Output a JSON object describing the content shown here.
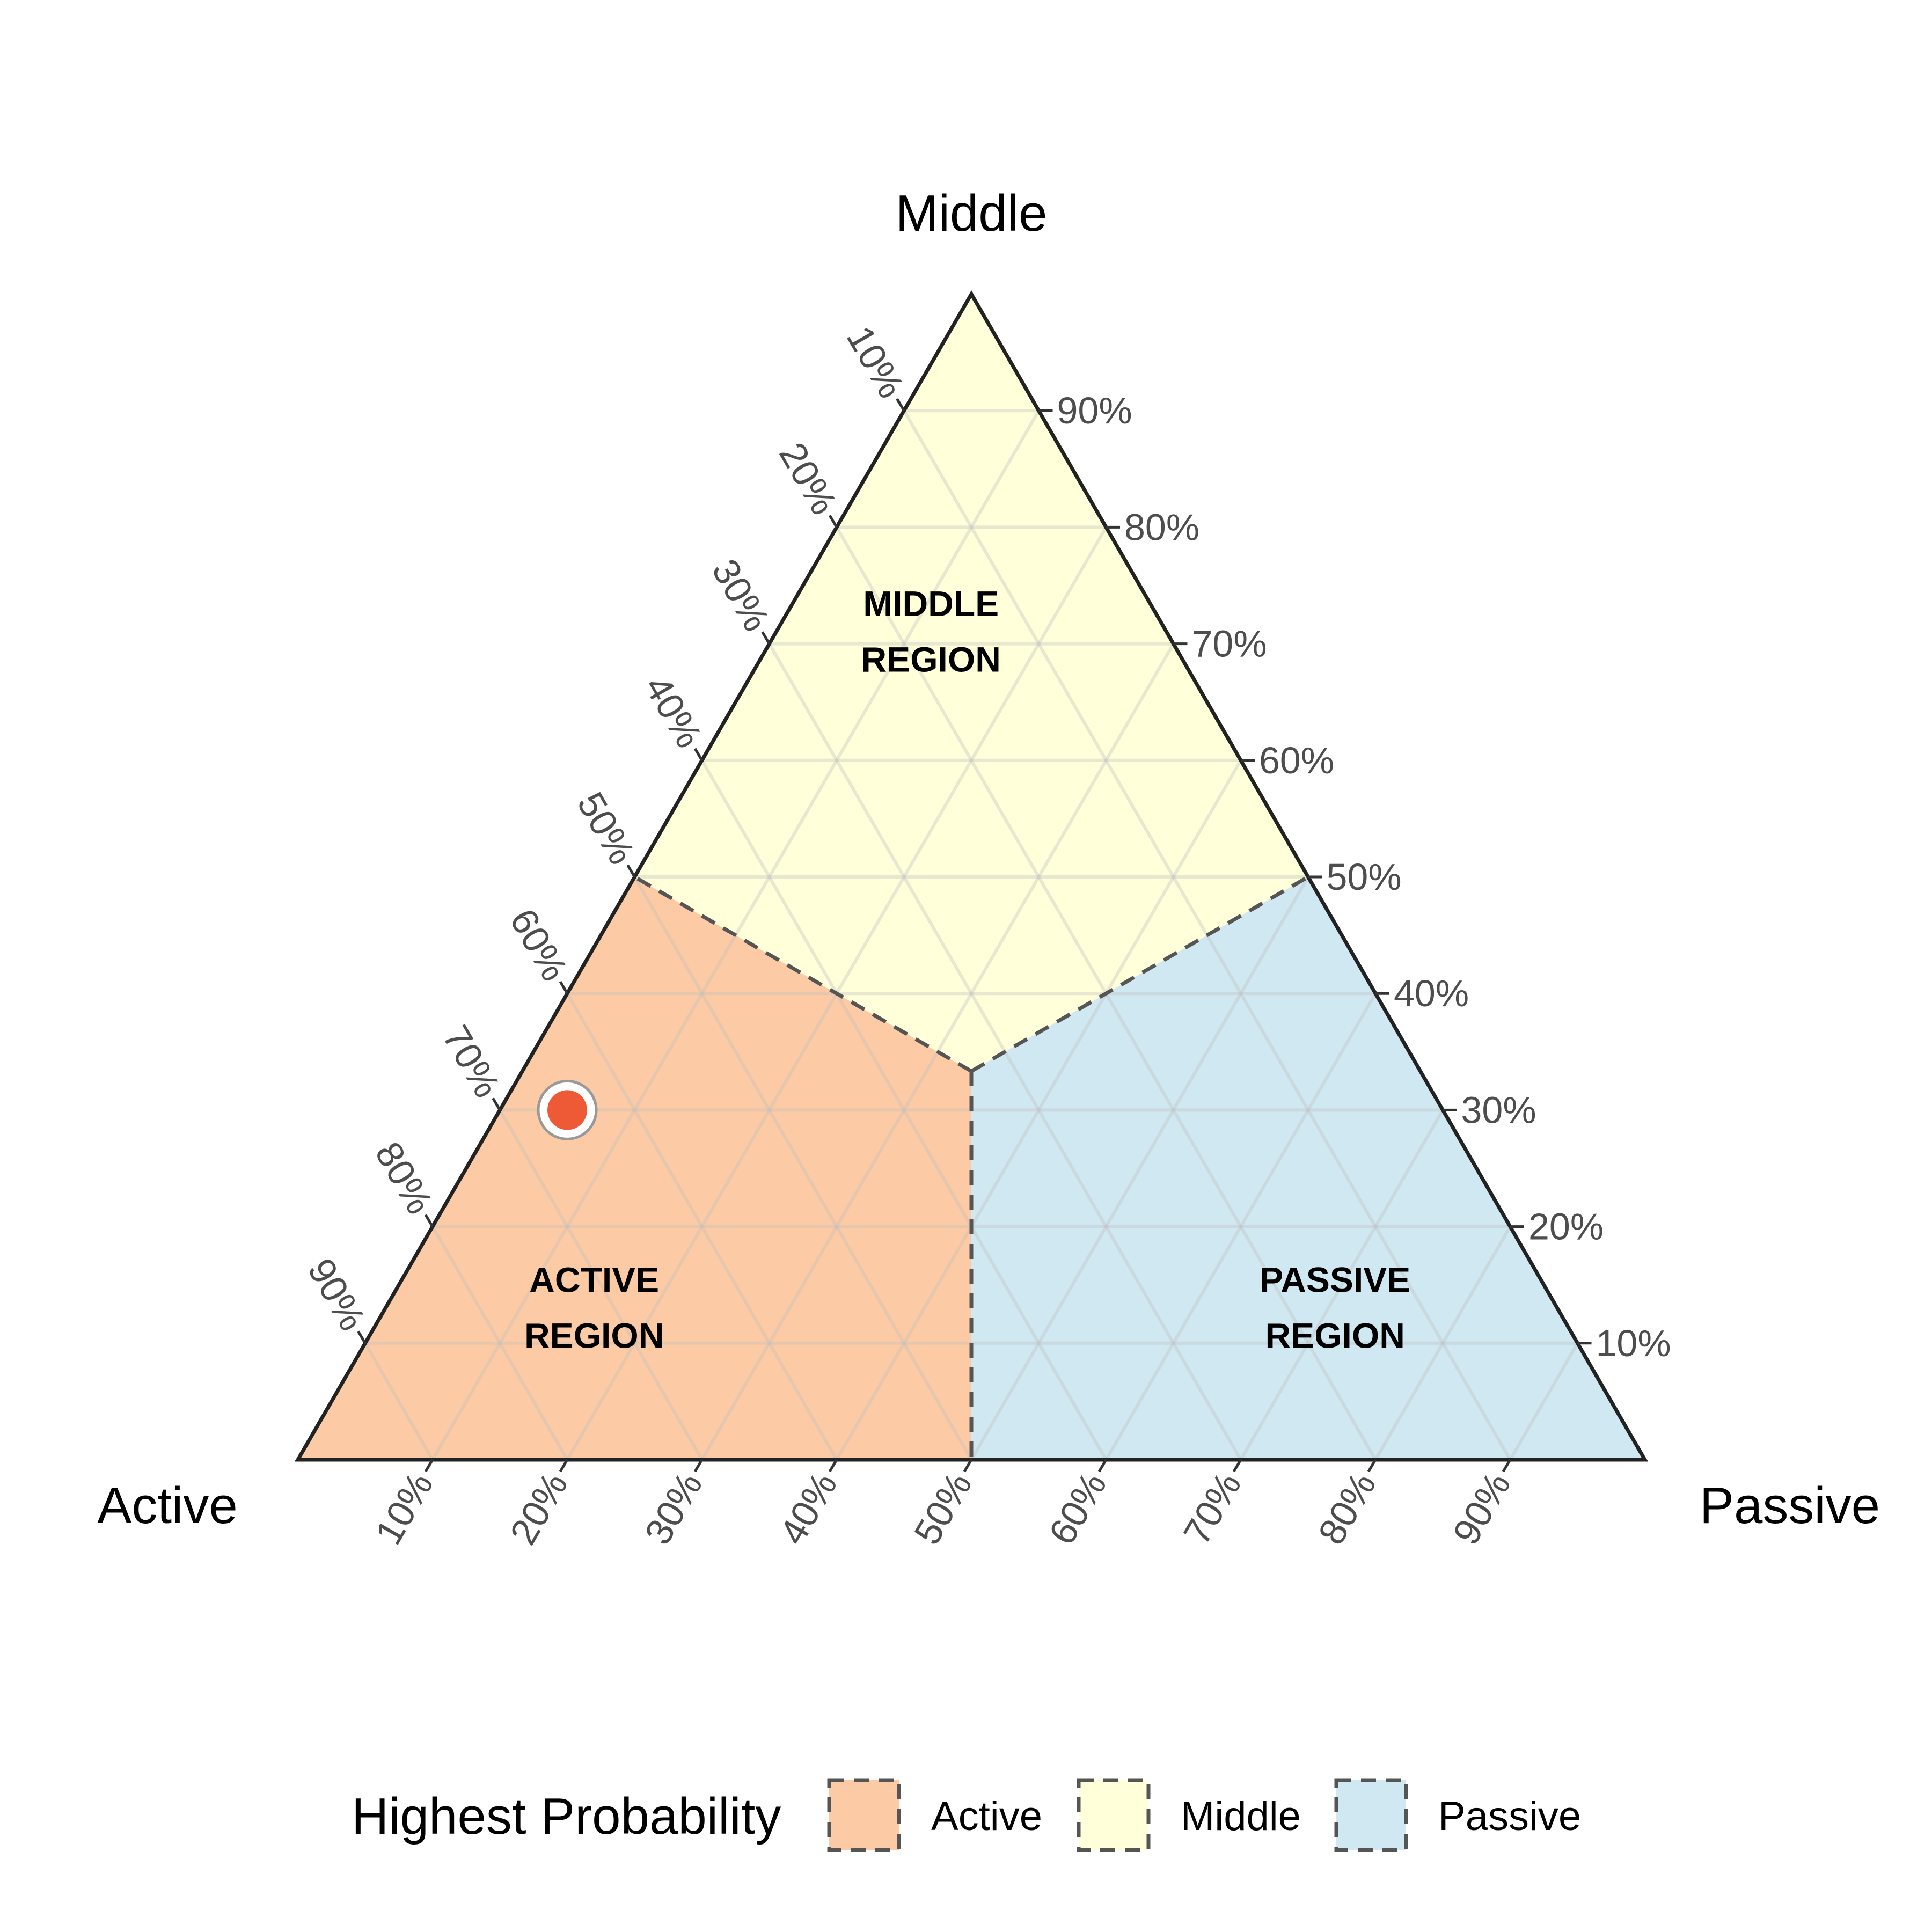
{
  "chart_data": {
    "type": "ternary",
    "axes": {
      "top": "Middle",
      "left": "Active",
      "right": "Passive"
    },
    "ticks": {
      "values": [
        10,
        20,
        30,
        40,
        50,
        60,
        70,
        80,
        90
      ],
      "labels": [
        "10%",
        "20%",
        "30%",
        "40%",
        "50%",
        "60%",
        "70%",
        "80%",
        "90%"
      ]
    },
    "grid": true,
    "regions": [
      {
        "name": "Active",
        "label_lines": [
          "ACTIVE",
          "REGION"
        ],
        "color": "#FCCBA5",
        "vertices": [
          {
            "active": 100,
            "middle": 0,
            "passive": 0
          },
          {
            "active": 50,
            "middle": 0,
            "passive": 50
          },
          {
            "active": 33.3,
            "middle": 33.3,
            "passive": 33.3
          },
          {
            "active": 50,
            "middle": 50,
            "passive": 0
          }
        ],
        "label_at": {
          "active": 72,
          "middle": 12,
          "passive": 16
        }
      },
      {
        "name": "Middle",
        "label_lines": [
          "MIDDLE",
          "REGION"
        ],
        "color": "#FFFFDA",
        "vertices": [
          {
            "active": 0,
            "middle": 100,
            "passive": 0
          },
          {
            "active": 50,
            "middle": 50,
            "passive": 0
          },
          {
            "active": 33.3,
            "middle": 33.3,
            "passive": 33.3
          },
          {
            "active": 0,
            "middle": 50,
            "passive": 50
          }
        ],
        "label_at": {
          "active": 18,
          "middle": 70,
          "passive": 12
        }
      },
      {
        "name": "Passive",
        "label_lines": [
          "PASSIVE",
          "REGION"
        ],
        "color": "#D0E8F1",
        "vertices": [
          {
            "active": 0,
            "middle": 0,
            "passive": 100
          },
          {
            "active": 0,
            "middle": 50,
            "passive": 50
          },
          {
            "active": 33.3,
            "middle": 33.3,
            "passive": 33.3
          },
          {
            "active": 50,
            "middle": 0,
            "passive": 50
          }
        ],
        "label_at": {
          "active": 17,
          "middle": 12,
          "passive": 71
        }
      }
    ],
    "points": [
      {
        "active": 65,
        "middle": 30,
        "passive": 5,
        "color": "#EE5A36"
      }
    ],
    "legend": {
      "title": "Highest Probability",
      "position": "bottom",
      "entries": [
        {
          "label": "Active",
          "color": "#FCCBA5"
        },
        {
          "label": "Middle",
          "color": "#FFFFDA"
        },
        {
          "label": "Passive",
          "color": "#D0E8F1"
        }
      ]
    }
  }
}
